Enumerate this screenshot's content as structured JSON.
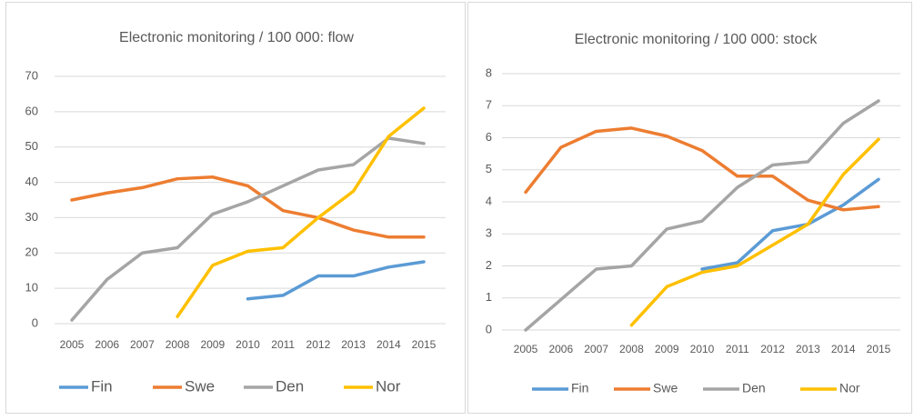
{
  "chart_data": [
    {
      "type": "line",
      "title": "Electronic monitoring / 100 000: flow",
      "categories": [
        "2005",
        "2006",
        "2007",
        "2008",
        "2009",
        "2010",
        "2011",
        "2012",
        "2013",
        "2014",
        "2015"
      ],
      "series": [
        {
          "name": "Fin",
          "color": "#5b9bd5",
          "values": [
            null,
            null,
            null,
            null,
            null,
            7,
            8,
            13.5,
            13.5,
            16,
            17.5
          ]
        },
        {
          "name": "Swe",
          "color": "#ed7d31",
          "values": [
            35,
            37,
            38.5,
            41,
            41.5,
            39,
            32,
            30,
            26.5,
            24.5,
            24.5
          ]
        },
        {
          "name": "Den",
          "color": "#a5a5a5",
          "values": [
            1,
            12.5,
            20,
            21.5,
            31,
            34.5,
            39,
            43.5,
            45,
            52.5,
            51
          ]
        },
        {
          "name": "Nor",
          "color": "#ffc000",
          "values": [
            null,
            null,
            null,
            2,
            16.5,
            20.5,
            21.5,
            30,
            37.5,
            53,
            61
          ]
        }
      ],
      "ylim": [
        0,
        70
      ],
      "yticks": [
        0,
        10,
        20,
        30,
        40,
        50,
        60,
        70
      ],
      "grid": true,
      "legend": "bottom"
    },
    {
      "type": "line",
      "title": "Electronic monitoring / 100 000: stock",
      "categories": [
        "2005",
        "2006",
        "2007",
        "2008",
        "2009",
        "2010",
        "2011",
        "2012",
        "2013",
        "2014",
        "2015"
      ],
      "series": [
        {
          "name": "Fin",
          "color": "#5b9bd5",
          "values": [
            null,
            null,
            null,
            null,
            null,
            1.9,
            2.1,
            3.1,
            3.3,
            3.9,
            4.7
          ]
        },
        {
          "name": "Swe",
          "color": "#ed7d31",
          "values": [
            4.3,
            5.7,
            6.2,
            6.3,
            6.05,
            5.6,
            4.8,
            4.8,
            4.05,
            3.75,
            3.85
          ]
        },
        {
          "name": "Den",
          "color": "#a5a5a5",
          "values": [
            0,
            0.95,
            1.9,
            2.0,
            3.15,
            3.4,
            4.45,
            5.15,
            5.25,
            6.45,
            7.15
          ]
        },
        {
          "name": "Nor",
          "color": "#ffc000",
          "values": [
            null,
            null,
            null,
            0.15,
            1.35,
            1.8,
            2.0,
            2.65,
            3.3,
            4.85,
            5.95
          ]
        }
      ],
      "ylim": [
        0,
        8
      ],
      "yticks": [
        0,
        1,
        2,
        3,
        4,
        5,
        6,
        7,
        8
      ],
      "grid": true,
      "legend": "bottom"
    }
  ]
}
